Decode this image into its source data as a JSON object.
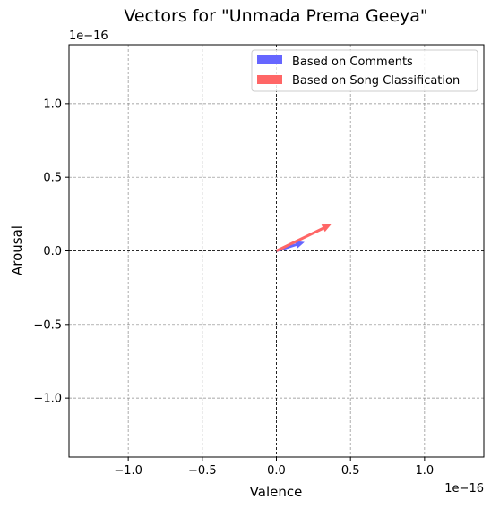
{
  "chart_data": {
    "type": "quiver",
    "title": "Vectors for \"Unmada Prema Geeya\"",
    "xlabel": "Valence",
    "ylabel": "Arousal",
    "x_offset_label": "1e−16",
    "y_offset_label": "1e−16",
    "xlim": [
      -1.4,
      1.4
    ],
    "ylim": [
      -1.4,
      1.4
    ],
    "xticks": [
      -1.0,
      -0.5,
      0.0,
      0.5,
      1.0
    ],
    "yticks": [
      -1.0,
      -0.5,
      0.0,
      0.5,
      1.0
    ],
    "xtick_labels": [
      "−1.0",
      "−0.5",
      "0.0",
      "0.5",
      "1.0"
    ],
    "ytick_labels": [
      "−1.0",
      "−0.5",
      "0.0",
      "0.5",
      "1.0"
    ],
    "grid": true,
    "legend_position": "top-right",
    "series": [
      {
        "name": "Based on Comments",
        "color": "#6666ff",
        "x0": 0,
        "y0": 0,
        "dx": 0.19,
        "dy": 0.06
      },
      {
        "name": "Based on Song Classification",
        "color": "#ff6666",
        "x0": 0,
        "y0": 0,
        "dx": 0.37,
        "dy": 0.18
      }
    ]
  }
}
